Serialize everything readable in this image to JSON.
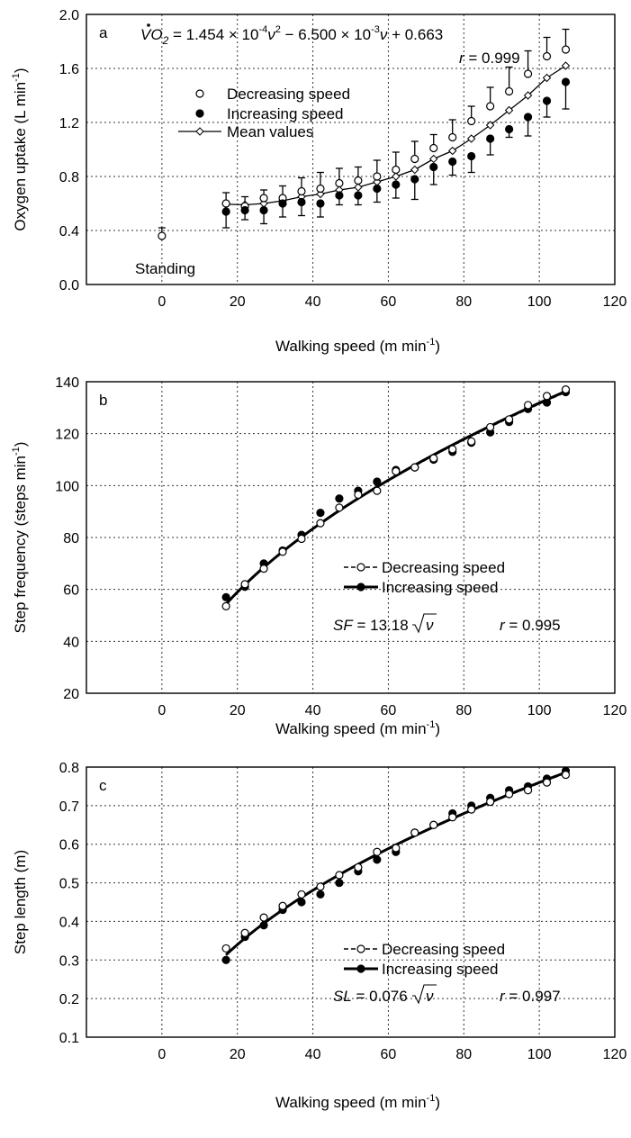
{
  "chart_data": [
    {
      "type": "scatter",
      "panel_label": "a",
      "equation": "VO₂ = 1.454 × 10⁻⁴ν² − 6.500 × 10⁻³ν + 0.663",
      "equation_parts": {
        "lhs": "VO",
        "lhs_sub": "2",
        "c1": " = 1.454 × 10",
        "e1": "-4",
        "v1": "ν",
        "sq": "2",
        "c2": " − 6.500 × 10",
        "e2": "-3",
        "v2": "ν",
        "c3": " + 0.663"
      },
      "r_label": "r",
      "r_value": " = 0.999",
      "standing_label": "Standing",
      "xlabel": "Walking speed (m min⁻¹)",
      "xlabel_main": "Walking speed (m min",
      "xlabel_sup": "-1",
      "xlabel_tail": ")",
      "ylabel": "Oxygen uptake (L min⁻¹)",
      "ylabel_main": "Oxygen uptake (L min",
      "ylabel_sup": "-1",
      "ylabel_tail": ")",
      "xlim": [
        -20,
        120
      ],
      "ylim": [
        0,
        2.0
      ],
      "xticks": [
        0,
        20,
        40,
        60,
        80,
        100,
        120
      ],
      "yticks": [
        "0.0",
        "0.4",
        "0.8",
        "1.2",
        "1.6",
        "2.0"
      ],
      "grid": true,
      "legend": [
        "Decreasing speed",
        "Increasing speed",
        "Mean values"
      ],
      "legend_position": "upper-left",
      "standing": {
        "x": 0,
        "y": 0.36,
        "err": 0.06
      },
      "x": [
        17,
        22,
        27,
        32,
        37,
        42,
        47,
        52,
        57,
        62,
        67,
        72,
        77,
        82,
        87,
        92,
        97,
        102,
        107
      ],
      "series": [
        {
          "name": "Decreasing speed",
          "marker": "open-circle",
          "values": [
            0.6,
            0.58,
            0.64,
            0.64,
            0.69,
            0.71,
            0.75,
            0.77,
            0.8,
            0.85,
            0.93,
            1.01,
            1.09,
            1.21,
            1.32,
            1.43,
            1.56,
            1.69,
            1.74
          ],
          "err": [
            0.08,
            0.07,
            0.06,
            0.09,
            0.1,
            0.12,
            0.11,
            0.1,
            0.12,
            0.13,
            0.13,
            0.1,
            0.13,
            0.11,
            0.14,
            0.18,
            0.17,
            0.14,
            0.15
          ]
        },
        {
          "name": "Increasing speed",
          "marker": "filled-circle",
          "values": [
            0.54,
            0.55,
            0.55,
            0.6,
            0.61,
            0.6,
            0.66,
            0.66,
            0.71,
            0.74,
            0.78,
            0.87,
            0.91,
            0.95,
            1.08,
            1.15,
            1.24,
            1.36,
            1.5
          ],
          "err": [
            0.12,
            0.07,
            0.1,
            0.1,
            0.1,
            0.1,
            0.07,
            0.07,
            0.1,
            0.1,
            0.15,
            0.13,
            0.1,
            0.12,
            0.12,
            0.06,
            0.14,
            0.12,
            0.2
          ]
        },
        {
          "name": "Mean values",
          "marker": "open-diamond-line",
          "values": [
            0.595,
            0.59,
            0.6,
            0.62,
            0.65,
            0.67,
            0.7,
            0.72,
            0.76,
            0.8,
            0.85,
            0.93,
            0.99,
            1.08,
            1.18,
            1.29,
            1.4,
            1.53,
            1.62
          ]
        }
      ]
    },
    {
      "type": "scatter",
      "panel_label": "b",
      "fit_label": "SF",
      "fit_text": " = 13.18",
      "fit_var": "ν",
      "r_label": "r",
      "r_value": " = 0.995",
      "xlabel": "Walking speed (m min⁻¹)",
      "xlabel_main": "Walking speed (m min",
      "xlabel_sup": "-1",
      "xlabel_tail": ")",
      "ylabel": "Step frequency (steps min⁻¹)",
      "ylabel_main": "Step frequency (steps  min",
      "ylabel_sup": "-1",
      "ylabel_tail": ")",
      "xlim": [
        -20,
        120
      ],
      "ylim": [
        20,
        140
      ],
      "xticks": [
        0,
        20,
        40,
        60,
        80,
        100,
        120
      ],
      "yticks": [
        "20",
        "40",
        "60",
        "80",
        "100",
        "120",
        "140"
      ],
      "grid": true,
      "legend": [
        "Decreasing speed",
        "Increasing speed"
      ],
      "legend_position": "lower-right",
      "x": [
        17,
        22,
        27,
        32,
        37,
        42,
        47,
        52,
        57,
        62,
        67,
        72,
        77,
        82,
        87,
        92,
        97,
        102,
        107
      ],
      "series": [
        {
          "name": "Decreasing speed",
          "marker": "open-circle",
          "line": "dashed",
          "values": [
            53.5,
            62,
            68,
            74.5,
            79.5,
            85.5,
            91.5,
            96.5,
            98,
            105.5,
            107,
            110.5,
            114,
            117,
            122.5,
            125.5,
            131,
            134.5,
            137
          ]
        },
        {
          "name": "Increasing speed",
          "marker": "filled-circle",
          "line": "solid",
          "values": [
            57,
            61,
            70,
            75,
            81,
            89.5,
            95,
            98,
            101.5,
            106,
            107,
            110,
            113,
            116.5,
            120.5,
            124.5,
            129.5,
            132,
            136
          ]
        }
      ]
    },
    {
      "type": "scatter",
      "panel_label": "c",
      "fit_label": "SL",
      "fit_text": " = 0.076",
      "fit_var": "ν",
      "r_label": "r",
      "r_value": " = 0.997",
      "xlabel": "Walking speed (m min⁻¹)",
      "xlabel_main": "Walking speed (m min",
      "xlabel_sup": "-1",
      "xlabel_tail": ")",
      "ylabel": "Step length (m)",
      "xlim": [
        -20,
        120
      ],
      "ylim": [
        0.1,
        0.8
      ],
      "xticks": [
        0,
        20,
        40,
        60,
        80,
        100,
        120
      ],
      "yticks": [
        "0.1",
        "0.2",
        "0.3",
        "0.4",
        "0.5",
        "0.6",
        "0.7",
        "0.8"
      ],
      "grid": true,
      "legend": [
        "Decreasing speed",
        "Increasing speed"
      ],
      "legend_position": "lower-right",
      "x": [
        17,
        22,
        27,
        32,
        37,
        42,
        47,
        52,
        57,
        62,
        67,
        72,
        77,
        82,
        87,
        92,
        97,
        102,
        107
      ],
      "series": [
        {
          "name": "Decreasing speed",
          "marker": "open-circle",
          "line": "dashed",
          "values": [
            0.33,
            0.37,
            0.41,
            0.44,
            0.47,
            0.49,
            0.52,
            0.54,
            0.58,
            0.59,
            0.63,
            0.65,
            0.67,
            0.69,
            0.71,
            0.73,
            0.74,
            0.76,
            0.78
          ]
        },
        {
          "name": "Increasing speed",
          "marker": "filled-circle",
          "line": "solid",
          "values": [
            0.3,
            0.36,
            0.39,
            0.43,
            0.45,
            0.47,
            0.5,
            0.53,
            0.56,
            0.58,
            0.63,
            0.65,
            0.68,
            0.7,
            0.72,
            0.74,
            0.75,
            0.77,
            0.79
          ]
        }
      ]
    }
  ]
}
